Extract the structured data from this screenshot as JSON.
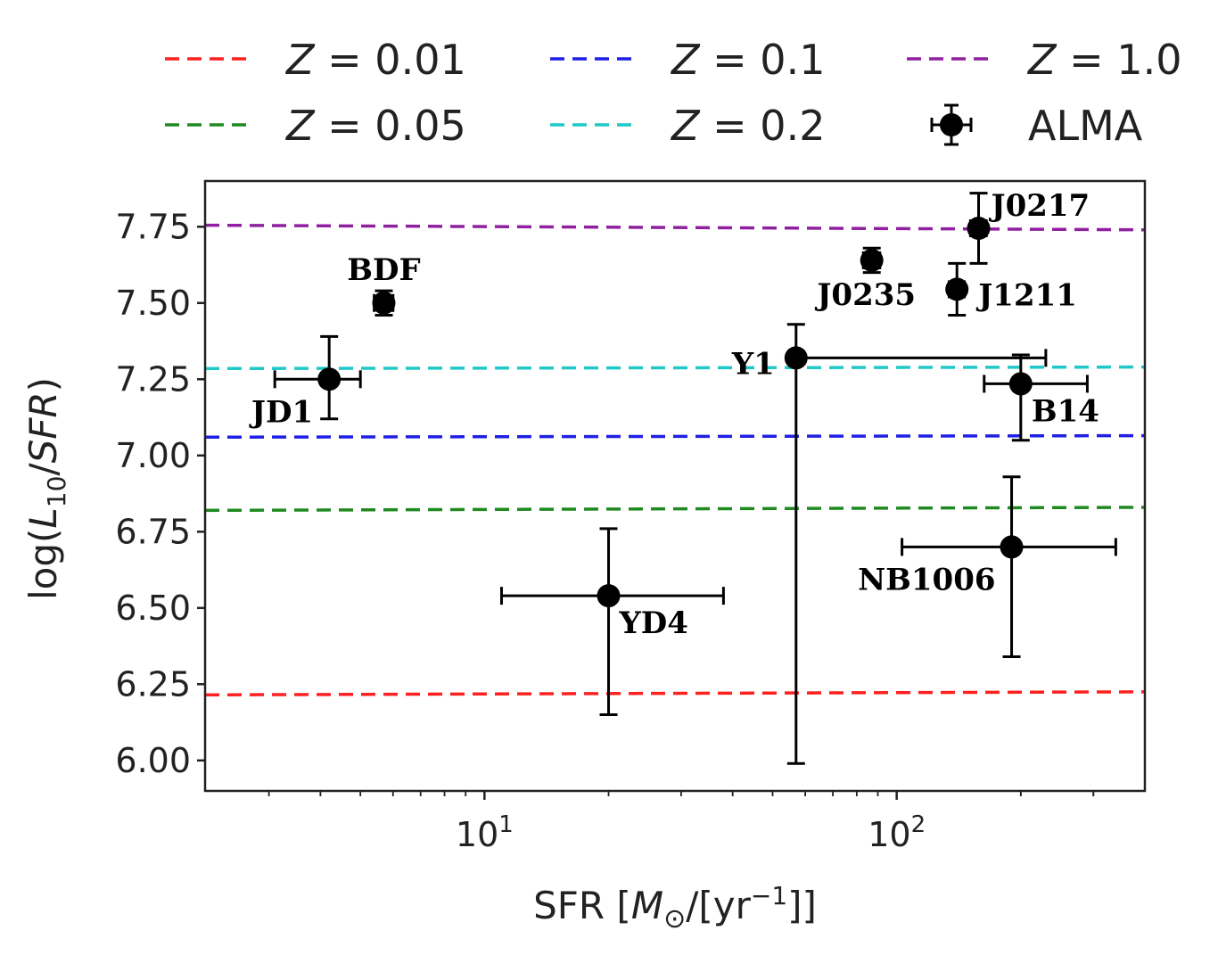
{
  "chart_data": {
    "type": "scatter",
    "title": "",
    "xlabel": "SFR [M⊙/[yr⁻¹]]",
    "ylabel": "log(L₁₀/SFR)",
    "xscale": "log",
    "xlim": [
      2.1,
      400
    ],
    "ylim": [
      5.9,
      7.9
    ],
    "xticks": [
      {
        "value": 10,
        "base": "10",
        "exp": "1"
      },
      {
        "value": 100,
        "base": "10",
        "exp": "2"
      }
    ],
    "yticks": [
      {
        "value": 6.0,
        "label": "6.00"
      },
      {
        "value": 6.25,
        "label": "6.25"
      },
      {
        "value": 6.5,
        "label": "6.50"
      },
      {
        "value": 6.75,
        "label": "6.75"
      },
      {
        "value": 7.0,
        "label": "7.00"
      },
      {
        "value": 7.25,
        "label": "7.25"
      },
      {
        "value": 7.5,
        "label": "7.50"
      },
      {
        "value": 7.75,
        "label": "7.75"
      }
    ],
    "grid": false,
    "legend_position": "top",
    "lines": [
      {
        "name": "Z = 0.01",
        "color": "#ff2020",
        "y_start": 6.215,
        "y_end": 6.225
      },
      {
        "name": "Z = 0.05",
        "color": "#1f8a1f",
        "y_start": 6.82,
        "y_end": 6.83
      },
      {
        "name": "Z = 0.1",
        "color": "#1f1fe6",
        "y_start": 7.06,
        "y_end": 7.065
      },
      {
        "name": "Z = 0.2",
        "color": "#20c8c8",
        "y_start": 7.285,
        "y_end": 7.29
      },
      {
        "name": "Z = 1.0",
        "color": "#9020a0",
        "y_start": 7.755,
        "y_end": 7.74
      }
    ],
    "series": [
      {
        "name": "ALMA",
        "color": "#000000",
        "points": [
          {
            "label": "JD1",
            "x": 4.2,
            "y": 7.25,
            "xerr_lo": 3.1,
            "xerr_hi": 5.0,
            "yerr_lo": 7.12,
            "yerr_hi": 7.39,
            "label_side": "below-left"
          },
          {
            "label": "BDF",
            "x": 5.7,
            "y": 7.5,
            "xerr_lo": 5.4,
            "xerr_hi": 6.0,
            "yerr_lo": 7.46,
            "yerr_hi": 7.54,
            "label_side": "above"
          },
          {
            "label": "YD4",
            "x": 20,
            "y": 6.54,
            "xerr_lo": 11,
            "xerr_hi": 38,
            "yerr_lo": 6.15,
            "yerr_hi": 6.76,
            "label_side": "below-right"
          },
          {
            "label": "Y1",
            "x": 57,
            "y": 7.32,
            "xerr_lo": 55,
            "xerr_hi": 230,
            "yerr_lo": 5.99,
            "yerr_hi": 7.43,
            "label_side": "left"
          },
          {
            "label": "J0235",
            "x": 87,
            "y": 7.64,
            "xerr_lo": 83,
            "xerr_hi": 91,
            "yerr_lo": 7.6,
            "yerr_hi": 7.68,
            "label_side": "below"
          },
          {
            "label": "J1211",
            "x": 140,
            "y": 7.545,
            "xerr_lo": 134,
            "xerr_hi": 146,
            "yerr_lo": 7.46,
            "yerr_hi": 7.63,
            "label_side": "right"
          },
          {
            "label": "J0217",
            "x": 158,
            "y": 7.745,
            "xerr_lo": 151,
            "xerr_hi": 165,
            "yerr_lo": 7.63,
            "yerr_hi": 7.86,
            "label_side": "above-right"
          },
          {
            "label": "B14",
            "x": 200,
            "y": 7.235,
            "xerr_lo": 163,
            "xerr_hi": 290,
            "yerr_lo": 7.05,
            "yerr_hi": 7.33,
            "label_side": "below-right"
          },
          {
            "label": "NB1006",
            "x": 190,
            "y": 6.7,
            "xerr_lo": 103,
            "xerr_hi": 340,
            "yerr_lo": 6.34,
            "yerr_hi": 6.93,
            "label_side": "below-left"
          }
        ]
      }
    ]
  }
}
